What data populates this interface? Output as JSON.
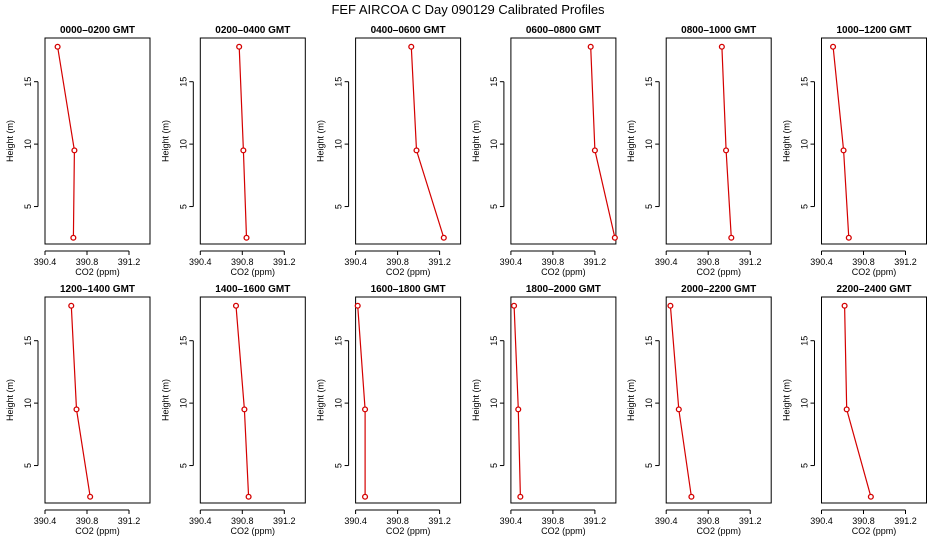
{
  "figure_title": "FEF AIRCOA C  Day 090129  Calibrated Profiles",
  "chart_data": [
    {
      "type": "line",
      "title": "0000–0200 GMT",
      "xlabel": "CO2 (ppm)",
      "ylabel": "Height (m)",
      "xlim": [
        390.4,
        391.4
      ],
      "ylim": [
        2.0,
        18.5
      ],
      "x_ticks": [
        "390.4",
        "390.8",
        "391.2"
      ],
      "y_ticks": [
        "5",
        "10",
        "15"
      ],
      "series": [
        {
          "x": [
            390.52,
            390.68,
            390.67
          ],
          "y": [
            17.8,
            9.5,
            2.5
          ]
        }
      ]
    },
    {
      "type": "line",
      "title": "0200–0400 GMT",
      "xlabel": "CO2 (ppm)",
      "ylabel": "Height (m)",
      "xlim": [
        390.4,
        391.4
      ],
      "ylim": [
        2.0,
        18.5
      ],
      "x_ticks": [
        "390.4",
        "390.8",
        "391.2"
      ],
      "y_ticks": [
        "5",
        "10",
        "15"
      ],
      "series": [
        {
          "x": [
            390.77,
            390.81,
            390.84
          ],
          "y": [
            17.8,
            9.5,
            2.5
          ]
        }
      ]
    },
    {
      "type": "line",
      "title": "0400–0600 GMT",
      "xlabel": "CO2 (ppm)",
      "ylabel": "Height (m)",
      "xlim": [
        390.4,
        391.4
      ],
      "ylim": [
        2.0,
        18.5
      ],
      "x_ticks": [
        "390.4",
        "390.8",
        "391.2"
      ],
      "y_ticks": [
        "5",
        "10",
        "15"
      ],
      "series": [
        {
          "x": [
            390.93,
            390.98,
            391.24
          ],
          "y": [
            17.8,
            9.5,
            2.5
          ]
        }
      ]
    },
    {
      "type": "line",
      "title": "0600–0800 GMT",
      "xlabel": "CO2 (ppm)",
      "ylabel": "Height (m)",
      "xlim": [
        390.4,
        391.4
      ],
      "ylim": [
        2.0,
        18.5
      ],
      "x_ticks": [
        "390.4",
        "390.8",
        "391.2"
      ],
      "y_ticks": [
        "5",
        "10",
        "15"
      ],
      "series": [
        {
          "x": [
            391.16,
            391.2,
            391.39
          ],
          "y": [
            17.8,
            9.5,
            2.5
          ]
        }
      ]
    },
    {
      "type": "line",
      "title": "0800–1000 GMT",
      "xlabel": "CO2 (ppm)",
      "ylabel": "Height (m)",
      "xlim": [
        390.4,
        391.4
      ],
      "ylim": [
        2.0,
        18.5
      ],
      "x_ticks": [
        "390.4",
        "390.8",
        "391.2"
      ],
      "y_ticks": [
        "5",
        "10",
        "15"
      ],
      "series": [
        {
          "x": [
            390.93,
            390.97,
            391.02
          ],
          "y": [
            17.8,
            9.5,
            2.5
          ]
        }
      ]
    },
    {
      "type": "line",
      "title": "1000–1200 GMT",
      "xlabel": "CO2 (ppm)",
      "ylabel": "Height (m)",
      "xlim": [
        390.4,
        391.4
      ],
      "ylim": [
        2.0,
        18.5
      ],
      "x_ticks": [
        "390.4",
        "390.8",
        "391.2"
      ],
      "y_ticks": [
        "5",
        "10",
        "15"
      ],
      "series": [
        {
          "x": [
            390.51,
            390.61,
            390.66
          ],
          "y": [
            17.8,
            9.5,
            2.5
          ]
        }
      ]
    },
    {
      "type": "line",
      "title": "1200–1400 GMT",
      "xlabel": "CO2 (ppm)",
      "ylabel": "Height (m)",
      "xlim": [
        390.4,
        391.4
      ],
      "ylim": [
        2.0,
        18.5
      ],
      "x_ticks": [
        "390.4",
        "390.8",
        "391.2"
      ],
      "y_ticks": [
        "5",
        "10",
        "15"
      ],
      "series": [
        {
          "x": [
            390.65,
            390.7,
            390.83
          ],
          "y": [
            17.8,
            9.5,
            2.5
          ]
        }
      ]
    },
    {
      "type": "line",
      "title": "1400–1600 GMT",
      "xlabel": "CO2 (ppm)",
      "ylabel": "Height (m)",
      "xlim": [
        390.4,
        391.4
      ],
      "ylim": [
        2.0,
        18.5
      ],
      "x_ticks": [
        "390.4",
        "390.8",
        "391.2"
      ],
      "y_ticks": [
        "5",
        "10",
        "15"
      ],
      "series": [
        {
          "x": [
            390.74,
            390.82,
            390.86
          ],
          "y": [
            17.8,
            9.5,
            2.5
          ]
        }
      ]
    },
    {
      "type": "line",
      "title": "1600–1800 GMT",
      "xlabel": "CO2 (ppm)",
      "ylabel": "Height (m)",
      "xlim": [
        390.4,
        391.4
      ],
      "ylim": [
        2.0,
        18.5
      ],
      "x_ticks": [
        "390.4",
        "390.8",
        "391.2"
      ],
      "y_ticks": [
        "5",
        "10",
        "15"
      ],
      "series": [
        {
          "x": [
            390.42,
            390.49,
            390.49
          ],
          "y": [
            17.8,
            9.5,
            2.5
          ]
        }
      ]
    },
    {
      "type": "line",
      "title": "1800–2000 GMT",
      "xlabel": "CO2 (ppm)",
      "ylabel": "Height (m)",
      "xlim": [
        390.4,
        391.4
      ],
      "ylim": [
        2.0,
        18.5
      ],
      "x_ticks": [
        "390.4",
        "390.8",
        "391.2"
      ],
      "y_ticks": [
        "5",
        "10",
        "15"
      ],
      "series": [
        {
          "x": [
            390.43,
            390.47,
            390.49
          ],
          "y": [
            17.8,
            9.5,
            2.5
          ]
        }
      ]
    },
    {
      "type": "line",
      "title": "2000–2200 GMT",
      "xlabel": "CO2 (ppm)",
      "ylabel": "Height (m)",
      "xlim": [
        390.4,
        391.4
      ],
      "ylim": [
        2.0,
        18.5
      ],
      "x_ticks": [
        "390.4",
        "390.8",
        "391.2"
      ],
      "y_ticks": [
        "5",
        "10",
        "15"
      ],
      "series": [
        {
          "x": [
            390.44,
            390.52,
            390.64
          ],
          "y": [
            17.8,
            9.5,
            2.5
          ]
        }
      ]
    },
    {
      "type": "line",
      "title": "2200–2400 GMT",
      "xlabel": "CO2 (ppm)",
      "ylabel": "Height (m)",
      "xlim": [
        390.4,
        391.4
      ],
      "ylim": [
        2.0,
        18.5
      ],
      "x_ticks": [
        "390.4",
        "390.8",
        "391.2"
      ],
      "y_ticks": [
        "5",
        "10",
        "15"
      ],
      "series": [
        {
          "x": [
            390.62,
            390.64,
            390.87
          ],
          "y": [
            17.8,
            9.5,
            2.5
          ]
        }
      ]
    }
  ],
  "colors": {
    "line": "#d40000",
    "axis": "#000000",
    "background": "#ffffff"
  }
}
